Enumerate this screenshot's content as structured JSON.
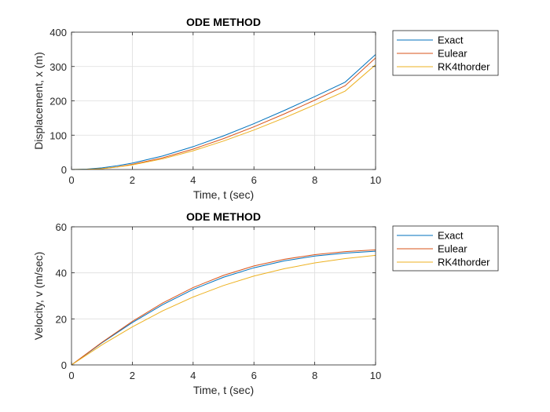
{
  "figure": {
    "background": "#ffffff",
    "axes_background": "#ffffff",
    "grid_color": "#dedede",
    "axis_color": "#262626"
  },
  "chart_data": [
    {
      "type": "line",
      "title": "ODE METHOD",
      "xlabel": "Time, t (sec)",
      "ylabel": "Displacement, x (m)",
      "xlim": [
        0,
        10
      ],
      "ylim": [
        0,
        400
      ],
      "xticks": [
        0,
        2,
        4,
        6,
        8,
        10
      ],
      "yticks": [
        0,
        100,
        200,
        300,
        400
      ],
      "grid": true,
      "legend_position": "outside-top-right",
      "x": [
        0,
        0.5,
        1,
        1.5,
        2,
        3,
        4,
        5,
        6,
        7,
        8,
        9,
        10
      ],
      "series": [
        {
          "name": "Exact",
          "color": "#0072bd",
          "values": [
            0,
            1.2,
            4.9,
            10.8,
            18.5,
            39.5,
            66.5,
            98,
            133.5,
            172,
            212.5,
            254.5,
            335
          ]
        },
        {
          "name": "Eulear",
          "color": "#d95319",
          "values": [
            0,
            0,
            2.5,
            7.5,
            15,
            34,
            59.5,
            90,
            124.5,
            162,
            202,
            244,
            325
          ]
        },
        {
          "name": "RK4thorder",
          "color": "#edb120",
          "values": [
            0,
            0.5,
            2.2,
            7,
            13.5,
            31,
            54.5,
            83,
            115,
            150.5,
            188.5,
            228.5,
            305
          ]
        }
      ]
    },
    {
      "type": "line",
      "title": "ODE METHOD",
      "xlabel": "Time, t (sec)",
      "ylabel": "Velocity, v (m/sec)",
      "xlim": [
        0,
        10
      ],
      "ylim": [
        0,
        60
      ],
      "xticks": [
        0,
        2,
        4,
        6,
        8,
        10
      ],
      "yticks": [
        0,
        20,
        40,
        60
      ],
      "grid": true,
      "legend_position": "outside-top-right",
      "x": [
        0,
        1,
        2,
        3,
        4,
        5,
        6,
        7,
        8,
        9,
        10
      ],
      "series": [
        {
          "name": "Exact",
          "color": "#0072bd",
          "values": [
            0,
            9.6,
            18.4,
            26.2,
            32.8,
            38.1,
            42.2,
            45.2,
            47.3,
            48.6,
            49.4
          ]
        },
        {
          "name": "Eulear",
          "color": "#d95319",
          "values": [
            0,
            9.8,
            18.9,
            26.9,
            33.6,
            38.9,
            43.0,
            45.9,
            47.9,
            49.2,
            50.0
          ]
        },
        {
          "name": "RK4thorder",
          "color": "#edb120",
          "values": [
            0,
            8.7,
            16.5,
            23.5,
            29.5,
            34.5,
            38.6,
            41.8,
            44.3,
            46.2,
            47.6
          ]
        }
      ]
    }
  ]
}
